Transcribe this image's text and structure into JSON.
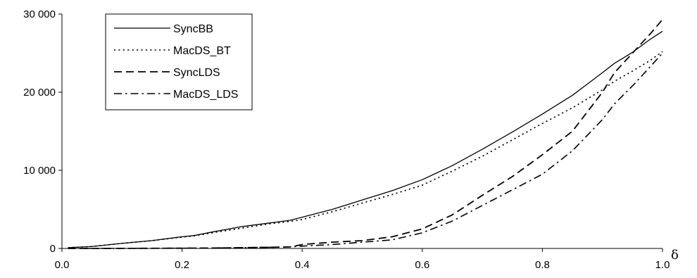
{
  "chart_data": {
    "type": "line",
    "title": "",
    "xlabel": "δ",
    "ylabel": "",
    "xlim": [
      0.0,
      1.0
    ],
    "ylim": [
      0,
      30000
    ],
    "x_ticks": [
      0.0,
      0.2,
      0.4,
      0.6,
      0.8,
      1.0
    ],
    "x_tick_labels": [
      "0.0",
      "0.2",
      "0.4",
      "0.6",
      "0.8",
      "1.0"
    ],
    "y_ticks": [
      0,
      10000,
      20000,
      30000
    ],
    "y_tick_labels": [
      "0",
      "10 000",
      "20 000",
      "30 000"
    ],
    "grid": false,
    "legend_position": "top-left",
    "x": [
      0.01,
      0.05,
      0.1,
      0.15,
      0.2,
      0.22,
      0.25,
      0.3,
      0.35,
      0.38,
      0.4,
      0.45,
      0.5,
      0.55,
      0.6,
      0.65,
      0.7,
      0.75,
      0.8,
      0.85,
      0.9,
      0.92,
      0.95,
      0.98,
      1.0
    ],
    "series": [
      {
        "name": "SyncBB",
        "dash": "solid",
        "values": [
          100,
          250,
          650,
          1000,
          1500,
          1650,
          2100,
          2800,
          3300,
          3600,
          4000,
          5000,
          6200,
          7400,
          8800,
          10600,
          12700,
          14900,
          17200,
          19600,
          22500,
          23700,
          25100,
          26800,
          27800
        ]
      },
      {
        "name": "MacDS_BT",
        "dash": "dotted",
        "values": [
          100,
          250,
          650,
          1000,
          1450,
          1600,
          2000,
          2600,
          3200,
          3450,
          3700,
          4700,
          5800,
          6900,
          8100,
          9900,
          11800,
          13900,
          16000,
          18000,
          20300,
          21400,
          22700,
          24100,
          25200
        ]
      },
      {
        "name": "SyncLDS",
        "dash": "dashed",
        "values": [
          0,
          0,
          10,
          20,
          30,
          40,
          50,
          100,
          150,
          200,
          500,
          800,
          1000,
          1500,
          2500,
          4300,
          6800,
          9200,
          12000,
          15000,
          20000,
          22500,
          25000,
          27500,
          29300
        ]
      },
      {
        "name": "MacDS_LDS",
        "dash": "dashdot",
        "values": [
          0,
          0,
          10,
          20,
          30,
          40,
          50,
          100,
          150,
          200,
          300,
          500,
          800,
          1100,
          2000,
          3500,
          5500,
          7500,
          9500,
          12500,
          16500,
          18500,
          20800,
          23300,
          25000
        ]
      }
    ]
  }
}
